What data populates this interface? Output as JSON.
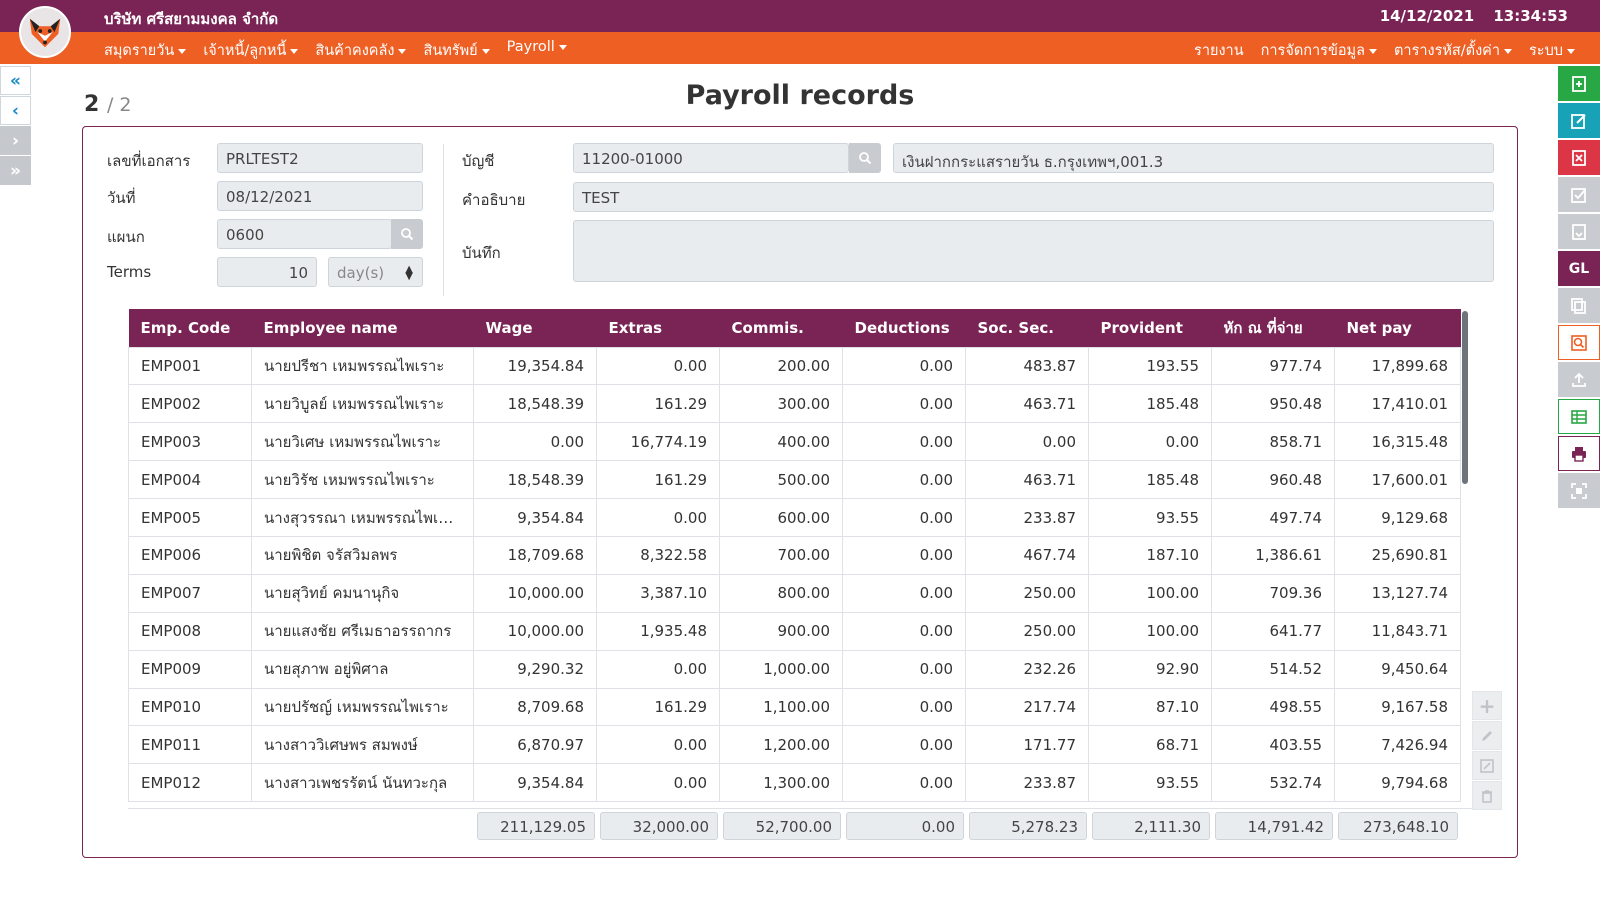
{
  "header": {
    "company": "บริษัท ศรีสยามมงคล จำกัด",
    "date": "14/12/2021",
    "time": "13:34:53"
  },
  "menu": {
    "left": [
      "สมุดรายวัน",
      "เจ้าหนี้/ลูกหนี้",
      "สินค้าคงคลัง",
      "สินทรัพย์",
      "Payroll"
    ],
    "right": [
      "รายงาน",
      "การจัดการข้อมูล",
      "ตารางรหัส/ตั้งค่า",
      "ระบบ"
    ]
  },
  "pager": {
    "current": "2",
    "total": "/ 2"
  },
  "page_title": "Payroll records",
  "form": {
    "doc_no_label": "เลขที่เอกสาร",
    "doc_no": "PRLTEST2",
    "date_label": "วันที่",
    "date": "08/12/2021",
    "dept_label": "แผนก",
    "dept": "0600",
    "terms_label": "Terms",
    "terms": "10",
    "terms_unit": "day(s)",
    "account_label": "บัญชี",
    "account": "11200-01000",
    "account_name": "เงินฝากกระแสรายวัน ธ.กรุงเทพฯ,001.3",
    "desc_label": "คำอธิบาย",
    "desc": "TEST",
    "memo_label": "บันทึก",
    "memo": ""
  },
  "table": {
    "columns": [
      "Emp. Code",
      "Employee name",
      "Wage",
      "Extras",
      "Commis.",
      "Deductions",
      "Soc. Sec.",
      "Provident",
      "หัก ณ ที่จ่าย",
      "Net pay"
    ],
    "rows": [
      [
        "EMP001",
        "นายปรีชา เหมพรรณไพเราะ",
        "19,354.84",
        "0.00",
        "200.00",
        "0.00",
        "483.87",
        "193.55",
        "977.74",
        "17,899.68"
      ],
      [
        "EMP002",
        "นายวิบูลย์ เหมพรรณไพเราะ",
        "18,548.39",
        "161.29",
        "300.00",
        "0.00",
        "463.71",
        "185.48",
        "950.48",
        "17,410.01"
      ],
      [
        "EMP003",
        "นายวิเศษ เหมพรรณไพเราะ",
        "0.00",
        "16,774.19",
        "400.00",
        "0.00",
        "0.00",
        "0.00",
        "858.71",
        "16,315.48"
      ],
      [
        "EMP004",
        "นายวิรัช เหมพรรณไพเราะ",
        "18,548.39",
        "161.29",
        "500.00",
        "0.00",
        "463.71",
        "185.48",
        "960.48",
        "17,600.01"
      ],
      [
        "EMP005",
        "นางสุวรรณา เหมพรรณไพเราะ",
        "9,354.84",
        "0.00",
        "600.00",
        "0.00",
        "233.87",
        "93.55",
        "497.74",
        "9,129.68"
      ],
      [
        "EMP006",
        "นายพิชิต จรัสวิมลพร",
        "18,709.68",
        "8,322.58",
        "700.00",
        "0.00",
        "467.74",
        "187.10",
        "1,386.61",
        "25,690.81"
      ],
      [
        "EMP007",
        "นายสุวิทย์ คมนานุกิจ",
        "10,000.00",
        "3,387.10",
        "800.00",
        "0.00",
        "250.00",
        "100.00",
        "709.36",
        "13,127.74"
      ],
      [
        "EMP008",
        "นายแสงชัย ศรีเมธาอรรถากร",
        "10,000.00",
        "1,935.48",
        "900.00",
        "0.00",
        "250.00",
        "100.00",
        "641.77",
        "11,843.71"
      ],
      [
        "EMP009",
        "นายสุภาพ อยู่พิศาล",
        "9,290.32",
        "0.00",
        "1,000.00",
        "0.00",
        "232.26",
        "92.90",
        "514.52",
        "9,450.64"
      ],
      [
        "EMP010",
        "นายปรัชญ์ เหมพรรณไพเราะ",
        "8,709.68",
        "161.29",
        "1,100.00",
        "0.00",
        "217.74",
        "87.10",
        "498.55",
        "9,167.58"
      ],
      [
        "EMP011",
        "นางสาววิเศษพร สมพงษ์",
        "6,870.97",
        "0.00",
        "1,200.00",
        "0.00",
        "171.77",
        "68.71",
        "403.55",
        "7,426.94"
      ],
      [
        "EMP012",
        "นางสาวเพชรรัตน์ นันทวะกุล",
        "9,354.84",
        "0.00",
        "1,300.00",
        "0.00",
        "233.87",
        "93.55",
        "532.74",
        "9,794.68"
      ]
    ],
    "totals": [
      "211,129.05",
      "32,000.00",
      "52,700.00",
      "0.00",
      "5,278.23",
      "2,111.30",
      "14,791.42",
      "273,648.10"
    ]
  },
  "colors": {
    "brand": "#7a2455",
    "accent": "#ee5f24",
    "green": "#28a745",
    "teal": "#17a2b8",
    "red": "#dc3545"
  }
}
